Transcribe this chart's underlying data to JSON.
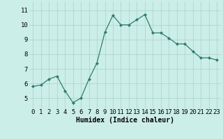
{
  "x": [
    0,
    1,
    2,
    3,
    4,
    5,
    6,
    7,
    8,
    9,
    10,
    11,
    12,
    13,
    14,
    15,
    16,
    17,
    18,
    19,
    20,
    21,
    22,
    23
  ],
  "y": [
    5.8,
    5.9,
    6.3,
    6.5,
    5.5,
    4.7,
    5.0,
    6.3,
    7.4,
    9.5,
    10.65,
    10.0,
    10.0,
    10.35,
    10.7,
    9.45,
    9.45,
    9.1,
    8.7,
    8.7,
    8.2,
    7.75,
    7.75,
    7.6
  ],
  "line_color": "#2e7d6e",
  "marker": "D",
  "marker_size": 2.0,
  "bg_color": "#cceee8",
  "grid_color": "#b0d4cc",
  "xlabel": "Humidex (Indice chaleur)",
  "ylabel_ticks": [
    5,
    6,
    7,
    8,
    9,
    10,
    11
  ],
  "xlim": [
    -0.5,
    23.5
  ],
  "ylim": [
    4.3,
    11.6
  ],
  "xlabel_fontsize": 7,
  "tick_fontsize": 6.5
}
